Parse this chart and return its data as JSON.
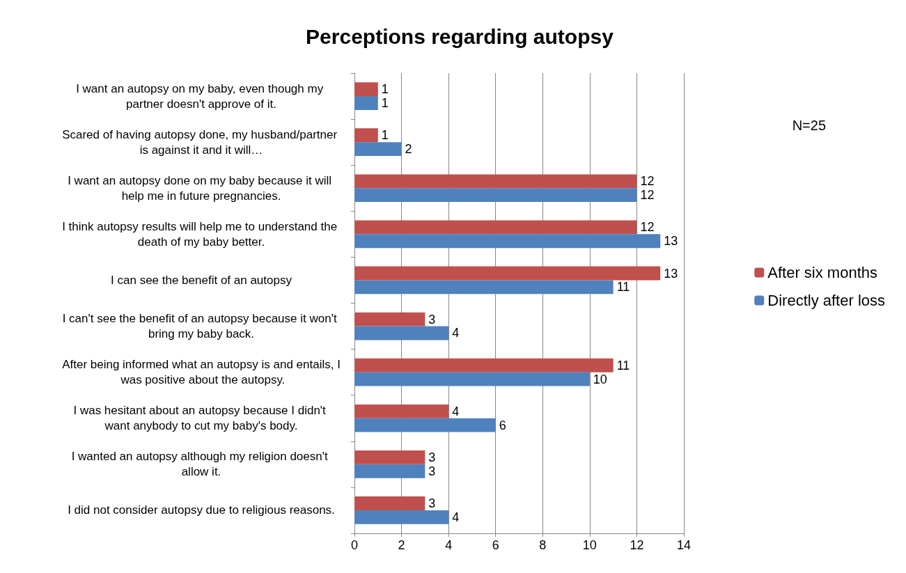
{
  "chart_data": {
    "type": "bar",
    "orientation": "horizontal",
    "title": "Perceptions regarding autopsy",
    "categories": [
      "I want an autopsy on my baby, even though my partner doesn't approve of it.",
      "Scared of having autopsy done, my husband/partner is against it and it will…",
      "I want an autopsy done on my baby because it will help me in future pregnancies.",
      "I think autopsy results will help me to understand the death of my baby better.",
      "I can see the benefit of an autopsy",
      "I can't see the benefit of an autopsy because it won't bring my baby back.",
      "After being informed what an autopsy is and entails, I was positive about the autopsy.",
      "I was hesitant about an autopsy because I didn't want anybody to cut my baby's body.",
      "I wanted an autopsy although my religion doesn't allow it.",
      "I did not consider autopsy due to religious reasons."
    ],
    "series": [
      {
        "name": "After six months",
        "color": "#c0504d",
        "values": [
          1,
          1,
          12,
          12,
          13,
          3,
          11,
          4,
          3,
          3
        ]
      },
      {
        "name": "Directly after loss",
        "color": "#4f81bd",
        "values": [
          1,
          2,
          12,
          13,
          11,
          4,
          10,
          6,
          3,
          4
        ]
      }
    ],
    "xlim": [
      0,
      14
    ],
    "xticks": [
      0,
      2,
      4,
      6,
      8,
      10,
      12,
      14
    ],
    "grid": "x",
    "legend": "right",
    "data_labels": true,
    "annotations": [
      "N=25"
    ]
  }
}
